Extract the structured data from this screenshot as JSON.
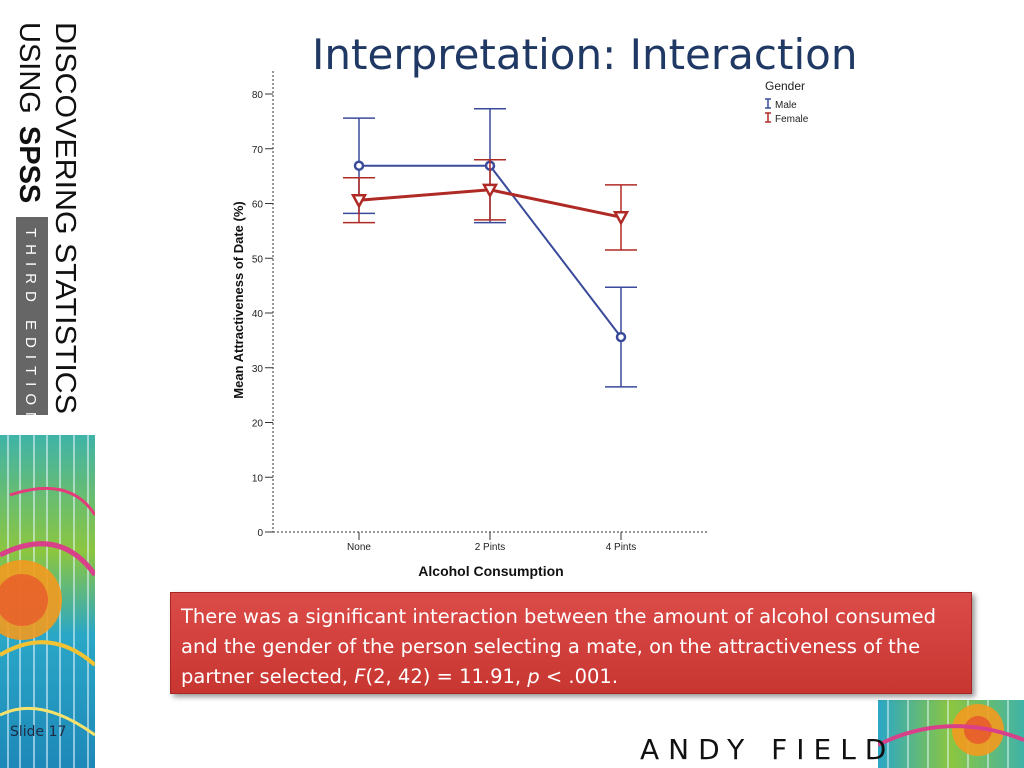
{
  "slide": {
    "title": "Interpretation: Interaction",
    "slide_number": "Slide 17",
    "author": "ANDY FIELD"
  },
  "book": {
    "line1": "DISCOVERING STATISTICS",
    "line2_light": "USING",
    "line2_bold": "SPSS",
    "edition": "THIRD EDITION"
  },
  "result": {
    "part1": "There was a significant interaction between the amount of alcohol consumed and the gender of the person selecting a mate, on the attractiveness of the partner selected, ",
    "f_symbol": "F",
    "part2": "(2, 42) = 11.91, ",
    "p_symbol": "p",
    "part3": " < .001."
  },
  "chart_data": {
    "type": "line",
    "xlabel": "Alcohol Consumption",
    "ylabel": "Mean Attractiveness of Date (%)",
    "categories": [
      "None",
      "2 Pints",
      "4 Pints"
    ],
    "ylim": [
      0,
      80
    ],
    "yticks": [
      0,
      10,
      20,
      30,
      40,
      50,
      60,
      70,
      80
    ],
    "legend_title": "Gender",
    "legend_position": "top-right",
    "grid": false,
    "series": [
      {
        "name": "Male",
        "color": "#3a4a9b",
        "marker": "circle",
        "values": [
          66.9,
          66.9,
          35.6
        ],
        "error_low": [
          58.2,
          56.5,
          26.5
        ],
        "error_high": [
          75.6,
          77.3,
          44.7
        ]
      },
      {
        "name": "Female",
        "color": "#b02a25",
        "marker": "triangle-down",
        "values": [
          60.6,
          62.5,
          57.5
        ],
        "error_low": [
          56.5,
          57.0,
          51.5
        ],
        "error_high": [
          64.7,
          68.0,
          63.4
        ]
      }
    ]
  }
}
